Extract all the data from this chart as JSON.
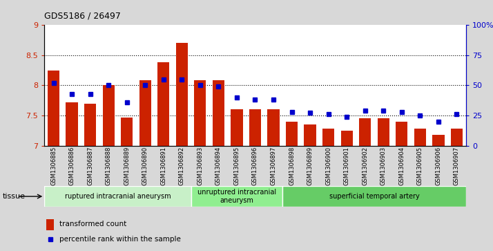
{
  "title": "GDS5186 / 26497",
  "samples": [
    "GSM1306885",
    "GSM1306886",
    "GSM1306887",
    "GSM1306888",
    "GSM1306889",
    "GSM1306890",
    "GSM1306891",
    "GSM1306892",
    "GSM1306893",
    "GSM1306894",
    "GSM1306895",
    "GSM1306896",
    "GSM1306897",
    "GSM1306898",
    "GSM1306899",
    "GSM1306900",
    "GSM1306901",
    "GSM1306902",
    "GSM1306903",
    "GSM1306904",
    "GSM1306905",
    "GSM1306906",
    "GSM1306907"
  ],
  "bar_values": [
    8.25,
    7.72,
    7.7,
    8.01,
    7.47,
    8.08,
    8.38,
    8.7,
    8.08,
    8.08,
    7.6,
    7.6,
    7.6,
    7.4,
    7.35,
    7.28,
    7.25,
    7.45,
    7.45,
    7.4,
    7.28,
    7.18,
    7.28
  ],
  "percentile_values": [
    52,
    43,
    43,
    50,
    36,
    50,
    55,
    55,
    50,
    49,
    40,
    38,
    38,
    28,
    27,
    26,
    24,
    29,
    29,
    28,
    25,
    20,
    26
  ],
  "groups": [
    {
      "label": "ruptured intracranial aneurysm",
      "start": 0,
      "end": 8
    },
    {
      "label": "unruptured intracranial\naneurysm",
      "start": 8,
      "end": 13
    },
    {
      "label": "superficial temporal artery",
      "start": 13,
      "end": 23
    }
  ],
  "group_colors": [
    "#c8f0c8",
    "#90ee90",
    "#66cc66"
  ],
  "ymin": 7.0,
  "ymax": 9.0,
  "yticks": [
    7.0,
    7.5,
    8.0,
    8.5,
    9.0
  ],
  "ytick_labels": [
    "7",
    "7.5",
    "8",
    "8.5",
    "9"
  ],
  "y2min": 0,
  "y2max": 100,
  "y2ticks": [
    0,
    25,
    50,
    75,
    100
  ],
  "y2tick_labels": [
    "0",
    "25",
    "50",
    "75",
    "100%"
  ],
  "bar_color": "#cc2200",
  "dot_color": "#0000cc",
  "bg_color": "#d8d8d8",
  "plot_bg": "#ffffff",
  "tissue_label": "tissue",
  "legend_bar": "transformed count",
  "legend_dot": "percentile rank within the sample"
}
